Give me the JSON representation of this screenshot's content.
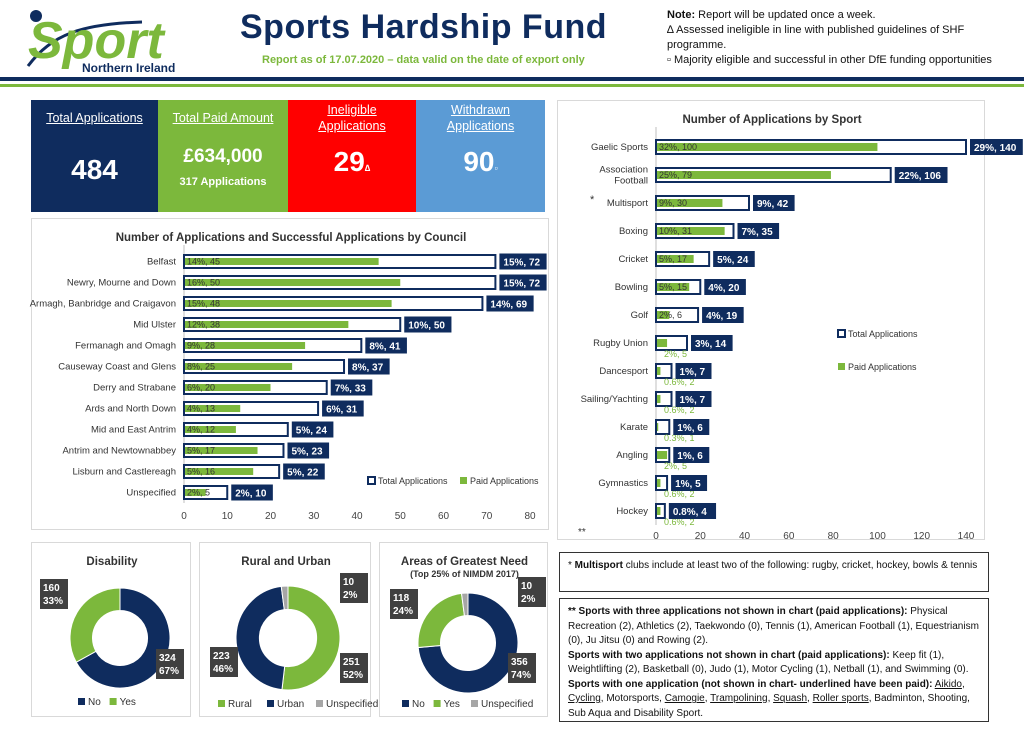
{
  "header": {
    "logo_main": "Sport",
    "logo_sub": "Northern Ireland",
    "title": "Sports Hardship Fund",
    "report_date": "Report as of 17.07.2020 – data valid on the date of export only",
    "note_label": "Note:",
    "note_text": " Report will be updated once a week.",
    "note_ineligible": "∆ Assessed ineligible in line with published guidelines of SHF programme.",
    "note_majority": "▫ Majority eligible and successful in other DfE funding opportunities"
  },
  "kpis": {
    "total_label": "Total Applications",
    "total_value": "484",
    "paid_label": "Total Paid Amount",
    "paid_value": "£634,000",
    "paid_sub": "317 Applications",
    "ineligible_label_1": "Ineligible",
    "ineligible_label_2": "Applications",
    "ineligible_value": "29",
    "ineligible_mark": "∆",
    "withdrawn_label_1": "Withdrawn",
    "withdrawn_label_2": "Applications",
    "withdrawn_value": "90",
    "withdrawn_mark": "▫"
  },
  "colors": {
    "navy": "#0f2c5e",
    "green": "#7cb83c",
    "red": "#ff0000",
    "blue": "#5b9bd5",
    "grey": "#a6a6a6"
  },
  "chart_data": [
    {
      "type": "bar",
      "title": "Number of Applications and Successful Applications by Council",
      "categories": [
        "Belfast",
        "Newry, Mourne and Down",
        "Armagh, Banbridge and Craigavon",
        "Mid Ulster",
        "Fermanagh and Omagh",
        "Causeway Coast and Glens",
        "Derry and Strabane",
        "Ards and North Down",
        "Mid and East Antrim",
        "Antrim and Newtownabbey",
        "Lisburn and Castlereagh",
        "Unspecified"
      ],
      "series": [
        {
          "name": "Total Applications",
          "values": [
            72,
            72,
            69,
            50,
            41,
            37,
            33,
            31,
            24,
            23,
            22,
            10
          ],
          "labels": [
            "15%, 72",
            "15%, 72",
            "14%, 69",
            "10%, 50",
            "8%, 41",
            "8%, 37",
            "7%, 33",
            "6%, 31",
            "5%, 24",
            "5%, 23",
            "5%, 22",
            "2%, 10"
          ]
        },
        {
          "name": "Paid Applications",
          "values": [
            45,
            50,
            48,
            38,
            28,
            25,
            20,
            13,
            12,
            17,
            16,
            5
          ],
          "labels": [
            "14%, 45",
            "16%, 50",
            "15%, 48",
            "12%, 38",
            "9%, 28",
            "8%, 25",
            "6%, 20",
            "4%, 13",
            "4%, 12",
            "5%, 17",
            "5%, 16",
            "2%, 5"
          ]
        }
      ],
      "xlim": [
        0,
        80
      ],
      "xticks": [
        "0",
        "10",
        "20",
        "30",
        "40",
        "50",
        "60",
        "70",
        "80"
      ],
      "legend": "bottom-right"
    },
    {
      "type": "bar",
      "title": "Number of Applications by Sport",
      "categories": [
        "Gaelic Sports",
        "Association Football",
        "Multisport",
        "Boxing",
        "Cricket",
        "Bowling",
        "Golf",
        "Rugby Union",
        "Dancesport",
        "Sailing/Yachting",
        "Karate",
        "Angling",
        "Gymnastics",
        "Hockey"
      ],
      "multisport_mark": "*",
      "axis_note": "**",
      "series": [
        {
          "name": "Total Applications",
          "values": [
            140,
            106,
            42,
            35,
            24,
            20,
            19,
            14,
            7,
            7,
            6,
            6,
            5,
            4
          ],
          "labels": [
            "29%, 140",
            "22%, 106",
            "9%, 42",
            "7%, 35",
            "5%, 24",
            "4%, 20",
            "4%, 19",
            "3%, 14",
            "1%, 7",
            "1%, 7",
            "1%, 6",
            "1%, 6",
            "1%, 5",
            "0.8%, 4"
          ]
        },
        {
          "name": "Paid Applications",
          "values": [
            100,
            79,
            30,
            31,
            17,
            15,
            6,
            5,
            2,
            2,
            1,
            5,
            2,
            2
          ],
          "labels": [
            "32%, 100",
            "25%, 79",
            "9%, 30",
            "10%, 31",
            "5%, 17",
            "5%, 15",
            "2%, 6",
            "2%, 5",
            "0.6%, 2",
            "0.6%, 2",
            "0.3%, 1",
            "2%, 5",
            "0.6%, 2",
            "0.6%, 2"
          ]
        }
      ],
      "xlim": [
        0,
        140
      ],
      "xticks": [
        "0",
        "20",
        "40",
        "60",
        "80",
        "100",
        "120",
        "140"
      ],
      "legend": "right"
    },
    {
      "type": "pie",
      "title": "Disability",
      "categories": [
        "No",
        "Yes"
      ],
      "values": [
        324,
        160
      ],
      "labels": [
        "324\n67%",
        "160\n33%"
      ],
      "colors": [
        "#0f2c5e",
        "#7cb83c"
      ]
    },
    {
      "type": "pie",
      "title": "Rural and Urban",
      "categories": [
        "Rural",
        "Urban",
        "Unspecified"
      ],
      "values": [
        251,
        223,
        10
      ],
      "labels": [
        "251\n52%",
        "223\n46%",
        "10\n2%"
      ],
      "colors": [
        "#7cb83c",
        "#0f2c5e",
        "#a6a6a6"
      ]
    },
    {
      "type": "pie",
      "title": "Areas of Greatest Need",
      "subtitle": "(Top 25% of NIMDM 2017)",
      "categories": [
        "No",
        "Yes",
        "Unspecified"
      ],
      "values": [
        356,
        118,
        10
      ],
      "labels": [
        "356\n74%",
        "118\n24%",
        "10\n2%"
      ],
      "colors": [
        "#0f2c5e",
        "#7cb83c",
        "#a6a6a6"
      ]
    }
  ],
  "footnotes": {
    "multisport_prefix": "* ",
    "multisport_bold": "Multisport",
    "multisport_text": " clubs include at least two of the following: rugby, cricket, hockey, bowls & tennis",
    "three_bold": "** Sports with three applications not shown in chart (paid applications):",
    "three_text": " Physical Recreation (2), Athletics (2), Taekwondo (0), Tennis (1), American Football (1), Equestrianism (0), Ju Jitsu (0) and Rowing (2).",
    "two_bold": "Sports with two applications not shown in chart (paid applications):",
    "two_text": " Keep fit (1), Weightlifting (2), Basketball (0), Judo (1), Motor Cycling (1), Netball (1), and Swimming (0).",
    "one_bold": "Sports with one application (not shown in chart- underlined have been paid):",
    "one_items": [
      {
        "t": " ",
        "u": false
      },
      {
        "t": "Aikido",
        "u": true
      },
      {
        "t": ", ",
        "u": false
      },
      {
        "t": "Cycling",
        "u": true
      },
      {
        "t": ", Motorsports, ",
        "u": false
      },
      {
        "t": "Camogie",
        "u": true
      },
      {
        "t": ", ",
        "u": false
      },
      {
        "t": "Trampolining",
        "u": true
      },
      {
        "t": ", ",
        "u": false
      },
      {
        "t": "Squash",
        "u": true
      },
      {
        "t": ", ",
        "u": false
      },
      {
        "t": "Roller sports",
        "u": true
      },
      {
        "t": ", Badminton, Shooting, Sub Aqua and Disability Sport.",
        "u": false
      }
    ]
  }
}
